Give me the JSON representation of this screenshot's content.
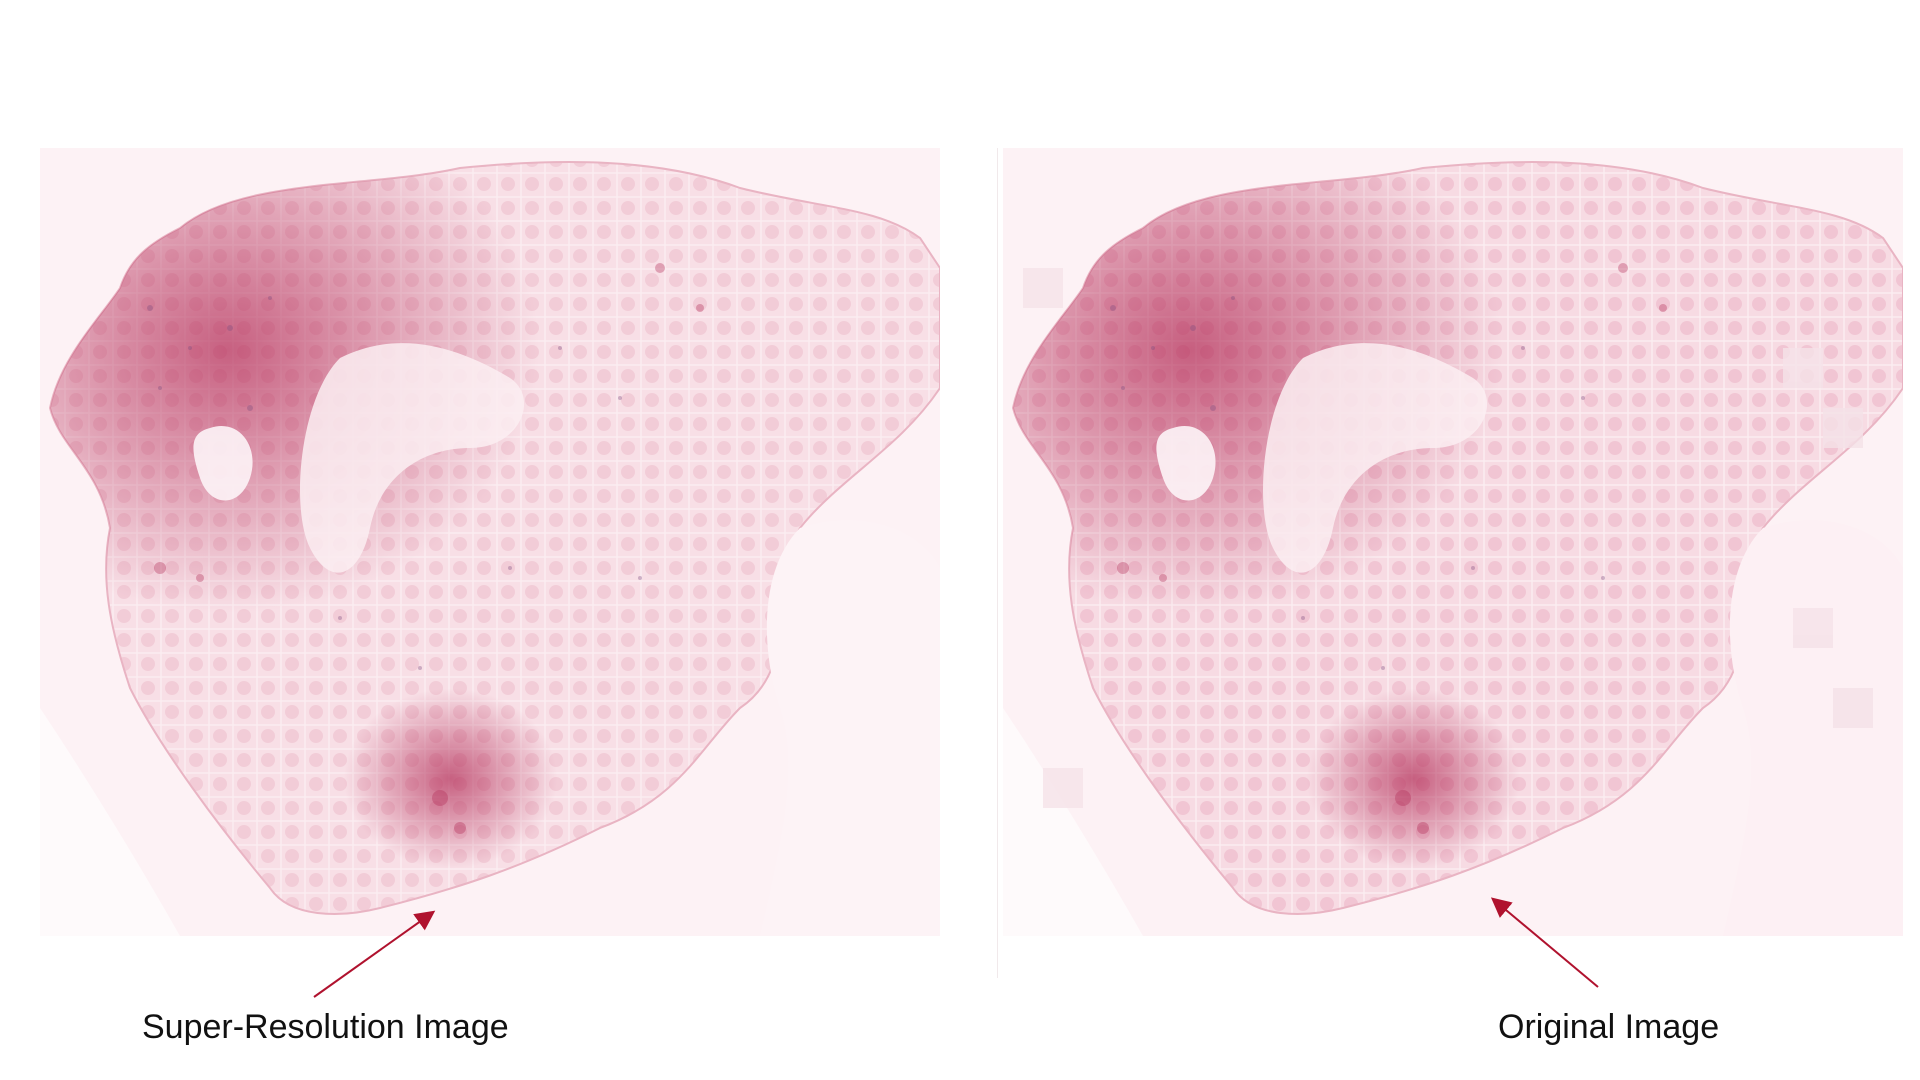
{
  "captions": {
    "left": "Super-Resolution Image",
    "right": "Original Image"
  },
  "colors": {
    "background": "#ffffff",
    "tissue_light": "#f3c9d4",
    "tissue_mid": "#d67f98",
    "tissue_dark": "#b22a55",
    "purple_speckle": "#7a4b7e",
    "arrow": "#b0122e"
  }
}
